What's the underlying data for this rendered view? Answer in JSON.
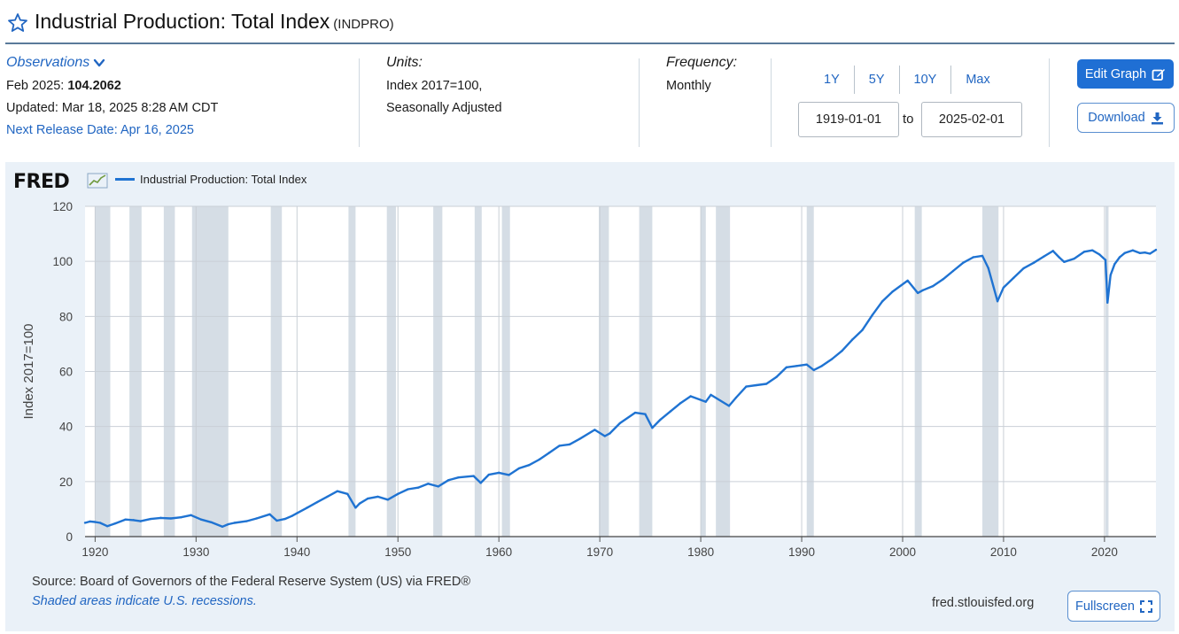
{
  "header": {
    "title": "Industrial Production: Total Index",
    "series_code": "(INDPRO)"
  },
  "observations": {
    "link_label": "Observations",
    "date_label": "Feb 2025:",
    "value": "104.2062",
    "updated": "Updated: Mar 18, 2025 8:28 AM CDT",
    "next_release": "Next Release Date: Apr 16, 2025"
  },
  "units": {
    "label": "Units:",
    "line1": "Index 2017=100,",
    "line2": "Seasonally Adjusted"
  },
  "frequency": {
    "label": "Frequency:",
    "value": "Monthly"
  },
  "range_buttons": [
    "1Y",
    "5Y",
    "10Y",
    "Max"
  ],
  "date_range": {
    "start": "1919-01-01",
    "to_label": "to",
    "end": "2025-02-01"
  },
  "actions": {
    "edit_label": "Edit Graph",
    "download_label": "Download",
    "fullscreen_label": "Fullscreen"
  },
  "footer": {
    "source": "Source: Board of Governors of the Federal Reserve System (US) via FRED®",
    "recession_note": "Shaded areas indicate U.S. recessions.",
    "site": "fred.stlouisfed.org"
  },
  "logo_text": "FRED",
  "colors": {
    "accent": "#2166c2",
    "series_line": "#1f73d2",
    "recession_shade": "#d5dde5",
    "panel_bg": "#eaf1f8"
  },
  "chart_data": {
    "type": "line",
    "title": "Industrial Production: Total Index",
    "ylabel": "Index 2017=100",
    "xlabel": "",
    "xlim": [
      1919.0,
      2025.1
    ],
    "ylim": [
      0,
      120
    ],
    "y_ticks": [
      0,
      20,
      40,
      60,
      80,
      100,
      120
    ],
    "x_ticks": [
      1920,
      1930,
      1940,
      1950,
      1960,
      1970,
      1980,
      1990,
      2000,
      2010,
      2020
    ],
    "grid": true,
    "legend_position": "top-left",
    "recessions": [
      [
        1920.0,
        1921.5
      ],
      [
        1923.4,
        1924.6
      ],
      [
        1926.8,
        1927.9
      ],
      [
        1929.6,
        1933.2
      ],
      [
        1937.4,
        1938.5
      ],
      [
        1945.1,
        1945.8
      ],
      [
        1948.9,
        1949.8
      ],
      [
        1953.5,
        1954.4
      ],
      [
        1957.6,
        1958.3
      ],
      [
        1960.3,
        1961.1
      ],
      [
        1969.9,
        1970.9
      ],
      [
        1973.9,
        1975.2
      ],
      [
        1980.0,
        1980.5
      ],
      [
        1981.5,
        1982.9
      ],
      [
        1990.5,
        1991.2
      ],
      [
        2001.2,
        2001.9
      ],
      [
        2007.9,
        2009.5
      ],
      [
        2020.1,
        2020.4
      ]
    ],
    "series": [
      {
        "name": "Industrial Production: Total Index",
        "x": [
          1919.0,
          1919.5,
          1920.0,
          1920.5,
          1921.2,
          1922.0,
          1923.0,
          1923.8,
          1924.5,
          1925.5,
          1926.5,
          1927.5,
          1928.5,
          1929.5,
          1930.5,
          1931.5,
          1932.6,
          1933.2,
          1933.8,
          1935.0,
          1936.0,
          1937.3,
          1938.0,
          1938.8,
          1939.5,
          1940.0,
          1941.0,
          1942.0,
          1943.0,
          1944.0,
          1945.0,
          1945.8,
          1946.2,
          1947.0,
          1948.0,
          1949.0,
          1950.0,
          1951.0,
          1952.0,
          1953.0,
          1954.0,
          1955.0,
          1956.0,
          1957.5,
          1958.2,
          1959.0,
          1960.0,
          1961.0,
          1962.0,
          1963.0,
          1964.0,
          1965.0,
          1966.0,
          1967.0,
          1968.0,
          1969.5,
          1970.5,
          1971.0,
          1972.0,
          1973.5,
          1974.5,
          1975.2,
          1976.0,
          1977.0,
          1978.0,
          1979.0,
          1980.5,
          1981.0,
          1982.8,
          1983.5,
          1984.5,
          1985.5,
          1986.5,
          1987.5,
          1988.5,
          1989.5,
          1990.5,
          1991.2,
          1992.0,
          1993.0,
          1994.0,
          1995.0,
          1996.0,
          1997.0,
          1998.0,
          1999.0,
          2000.5,
          2001.5,
          2002.0,
          2003.0,
          2004.0,
          2005.0,
          2006.0,
          2007.0,
          2007.9,
          2008.5,
          2009.4,
          2010.0,
          2011.0,
          2012.0,
          2013.0,
          2014.0,
          2014.9,
          2015.5,
          2016.0,
          2017.0,
          2018.0,
          2018.8,
          2019.5,
          2020.1,
          2020.3,
          2020.6,
          2021.0,
          2021.5,
          2022.0,
          2022.8,
          2023.5,
          2024.0,
          2024.5,
          2025.1
        ],
        "values": [
          5.0,
          5.5,
          5.3,
          5.0,
          3.8,
          4.8,
          6.2,
          6.0,
          5.6,
          6.4,
          6.8,
          6.6,
          7.0,
          7.8,
          6.2,
          5.2,
          3.6,
          4.5,
          5.0,
          5.6,
          6.6,
          8.1,
          5.8,
          6.4,
          7.5,
          8.5,
          10.5,
          12.5,
          14.5,
          16.5,
          15.5,
          10.5,
          12.0,
          13.8,
          14.5,
          13.4,
          15.5,
          17.2,
          17.8,
          19.2,
          18.2,
          20.5,
          21.5,
          22.0,
          19.5,
          22.5,
          23.2,
          22.4,
          24.8,
          26.0,
          28.0,
          30.5,
          33.0,
          33.5,
          35.5,
          38.8,
          36.5,
          37.5,
          41.2,
          45.0,
          44.5,
          39.5,
          42.5,
          45.5,
          48.5,
          51.0,
          49.0,
          51.5,
          47.5,
          50.5,
          54.5,
          55.0,
          55.5,
          58.0,
          61.5,
          62.0,
          62.5,
          60.5,
          62.0,
          64.5,
          67.5,
          71.5,
          75.0,
          80.5,
          85.5,
          89.0,
          93.0,
          88.5,
          89.5,
          91.0,
          93.5,
          96.5,
          99.5,
          101.5,
          102.0,
          97.5,
          85.5,
          90.5,
          94.0,
          97.5,
          99.5,
          101.8,
          103.8,
          101.5,
          99.8,
          101.0,
          103.5,
          104.0,
          102.5,
          100.5,
          85.0,
          95.0,
          99.0,
          101.5,
          103.0,
          104.0,
          103.0,
          103.2,
          102.8,
          104.2
        ]
      }
    ]
  }
}
